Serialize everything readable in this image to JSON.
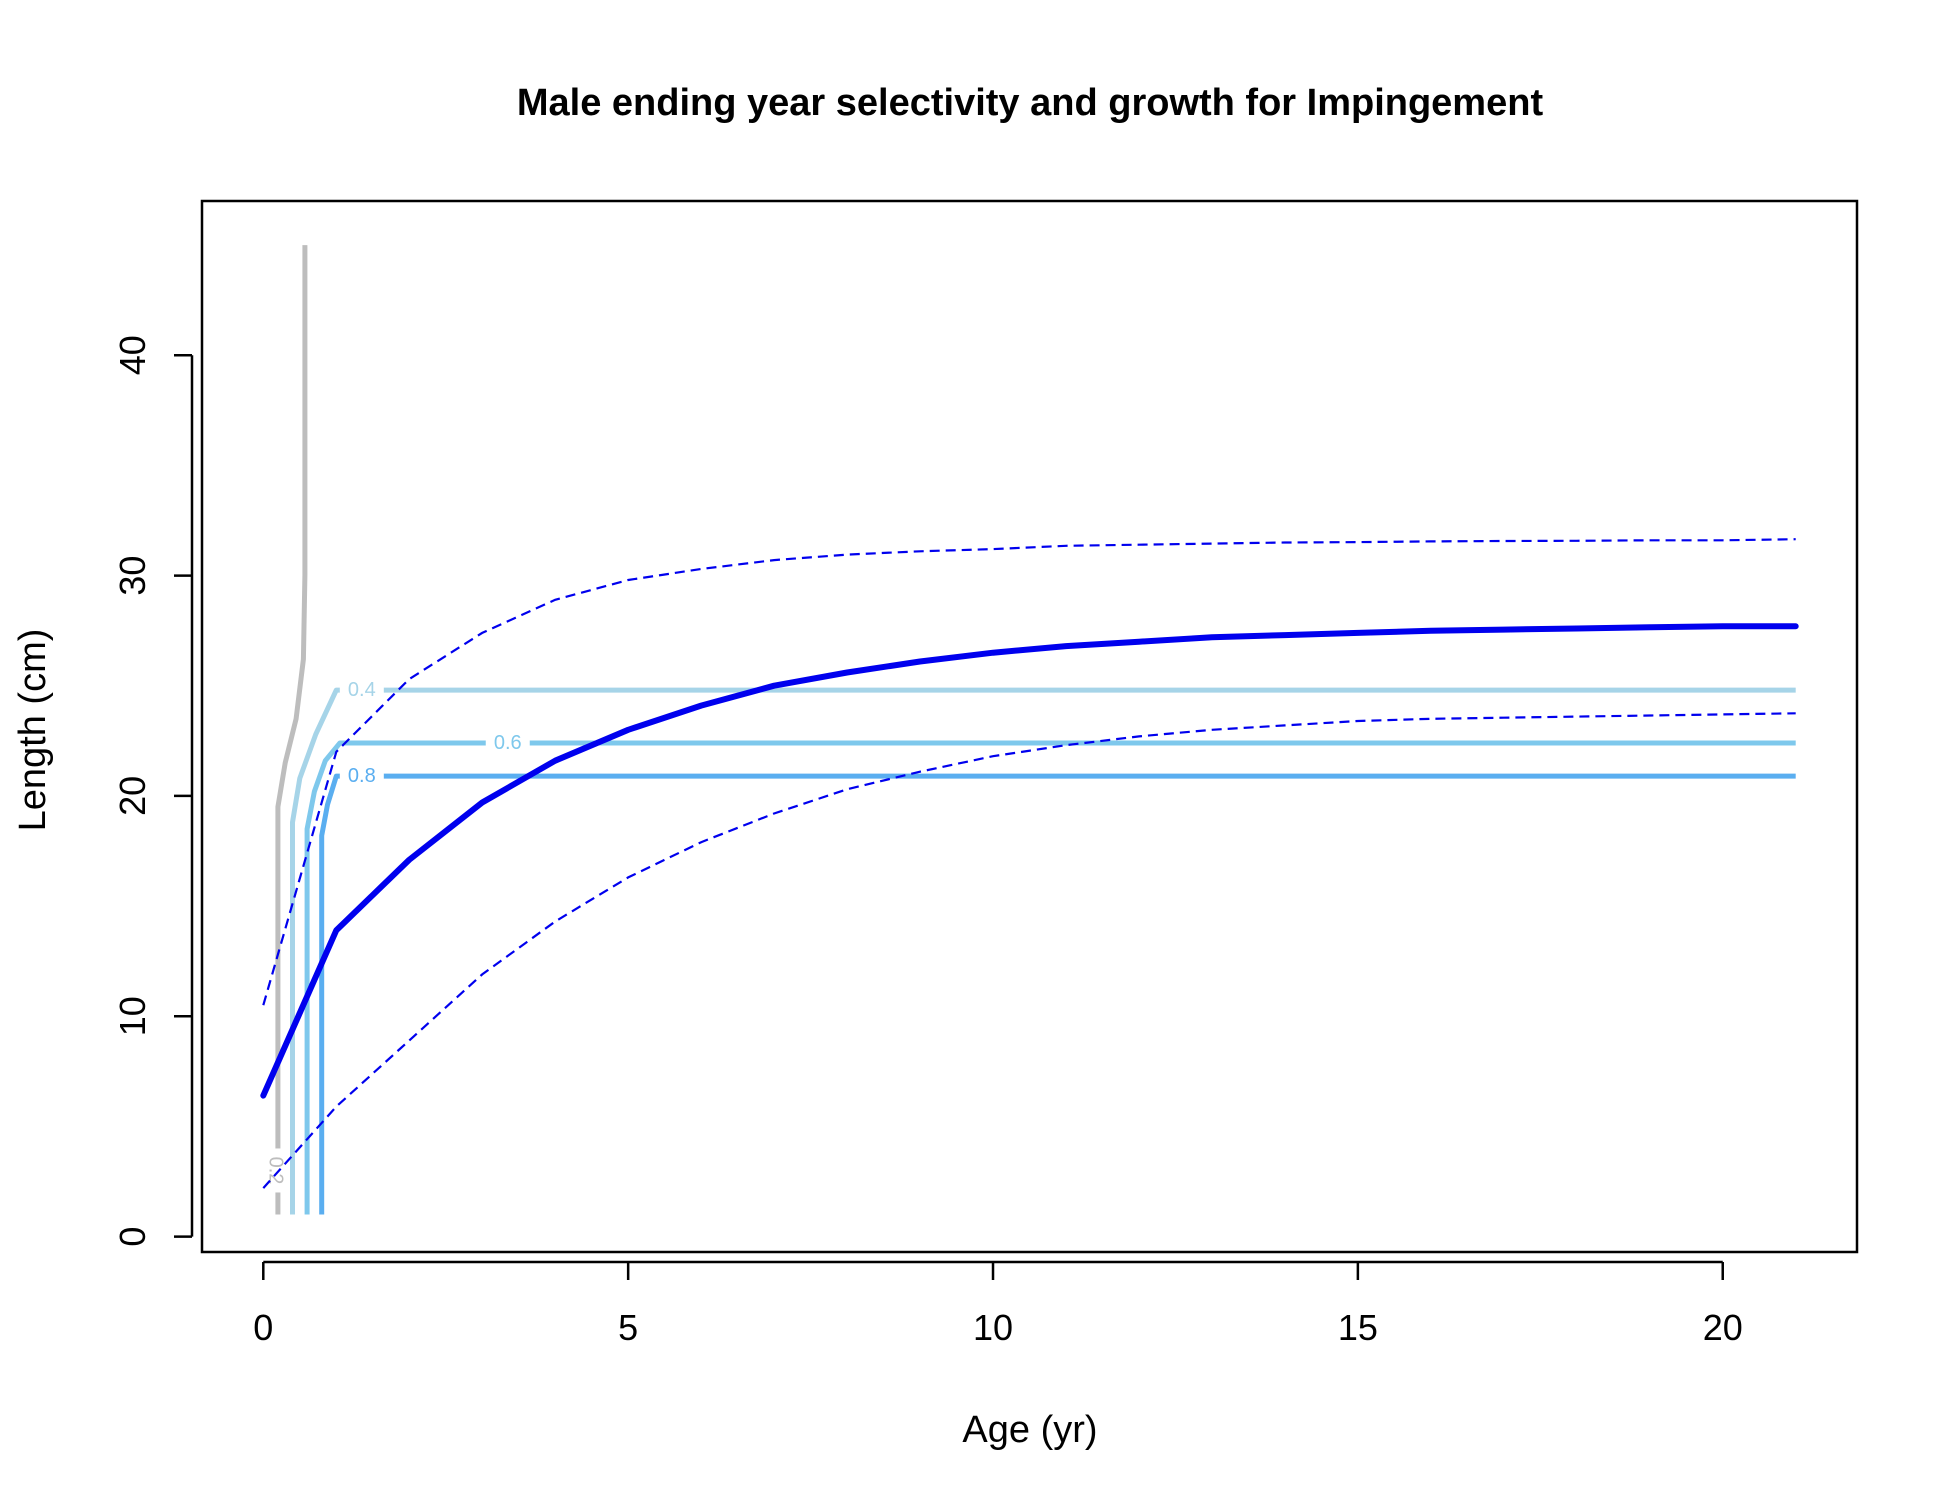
{
  "chart_data": {
    "type": "line",
    "title": "Male ending year selectivity and growth for Impingement",
    "xlabel": "Age (yr)",
    "ylabel": "Length (cm)",
    "xlim": [
      -0.84,
      21.84
    ],
    "ylim": [
      -0.7,
      47
    ],
    "xticks": [
      0,
      5,
      10,
      15,
      20
    ],
    "yticks": [
      0,
      10,
      20,
      30,
      40
    ],
    "grid": false,
    "legend": "none",
    "colors": {
      "growth": "#0000ee",
      "ci": "#0000ee",
      "contour_02": "#bdbdbd",
      "contour_04": "#a6d4e8",
      "contour_06": "#7ec8ec",
      "contour_08": "#5aaef0",
      "axis": "#000000"
    },
    "growth": {
      "x": [
        0,
        1,
        2,
        3,
        4,
        5,
        6,
        7,
        8,
        9,
        10,
        11,
        12,
        13,
        14,
        15,
        16,
        17,
        18,
        19,
        20,
        21
      ],
      "y": [
        6.4,
        13.9,
        17.1,
        19.7,
        21.6,
        23.0,
        24.1,
        25.0,
        25.6,
        26.1,
        26.5,
        26.8,
        27.0,
        27.2,
        27.3,
        27.4,
        27.5,
        27.55,
        27.6,
        27.65,
        27.7,
        27.7
      ]
    },
    "ci_upper": {
      "x": [
        0,
        1,
        2,
        3,
        4,
        5,
        6,
        7,
        8,
        9,
        10,
        11,
        12,
        13,
        14,
        15,
        16,
        17,
        18,
        19,
        20,
        21
      ],
      "y": [
        10.5,
        22.0,
        25.3,
        27.4,
        28.9,
        29.8,
        30.3,
        30.7,
        30.95,
        31.1,
        31.2,
        31.35,
        31.4,
        31.45,
        31.5,
        31.52,
        31.55,
        31.57,
        31.58,
        31.6,
        31.6,
        31.65
      ]
    },
    "ci_lower": {
      "x": [
        0,
        1,
        2,
        3,
        4,
        5,
        6,
        7,
        8,
        9,
        10,
        11,
        12,
        13,
        14,
        15,
        16,
        17,
        18,
        19,
        20,
        21
      ],
      "y": [
        2.2,
        5.9,
        8.9,
        11.9,
        14.3,
        16.3,
        17.9,
        19.2,
        20.3,
        21.1,
        21.8,
        22.3,
        22.7,
        23.0,
        23.2,
        23.4,
        23.5,
        23.55,
        23.6,
        23.65,
        23.7,
        23.75
      ]
    },
    "contours": [
      {
        "level": "0.2",
        "color_key": "contour_02",
        "points": [
          [
            0.2,
            1
          ],
          [
            0.2,
            19.5
          ],
          [
            0.3,
            21.5
          ],
          [
            0.45,
            23.5
          ],
          [
            0.55,
            26.2
          ],
          [
            0.57,
            30
          ],
          [
            0.57,
            45
          ]
        ],
        "label": {
          "x": 0.17,
          "y": 3.0,
          "rotate": 90
        }
      },
      {
        "level": "0.4",
        "color_key": "contour_04",
        "points": [
          [
            0.4,
            1
          ],
          [
            0.4,
            18.8
          ],
          [
            0.5,
            20.8
          ],
          [
            0.72,
            22.8
          ],
          [
            1.0,
            24.8
          ],
          [
            21,
            24.8
          ]
        ],
        "label": {
          "x": 1.35,
          "y": 24.8,
          "rotate": 0
        }
      },
      {
        "level": "0.6",
        "color_key": "contour_06",
        "points": [
          [
            0.6,
            1
          ],
          [
            0.6,
            18.5
          ],
          [
            0.7,
            20.2
          ],
          [
            0.85,
            21.6
          ],
          [
            1.05,
            22.4
          ],
          [
            21,
            22.4
          ]
        ],
        "label": {
          "x": 3.35,
          "y": 22.4,
          "rotate": 0
        }
      },
      {
        "level": "0.8",
        "color_key": "contour_08",
        "points": [
          [
            0.8,
            1
          ],
          [
            0.8,
            18.2
          ],
          [
            0.88,
            19.6
          ],
          [
            1.0,
            20.9
          ],
          [
            21,
            20.9
          ]
        ],
        "label": {
          "x": 1.35,
          "y": 20.9,
          "rotate": 0
        }
      }
    ]
  }
}
